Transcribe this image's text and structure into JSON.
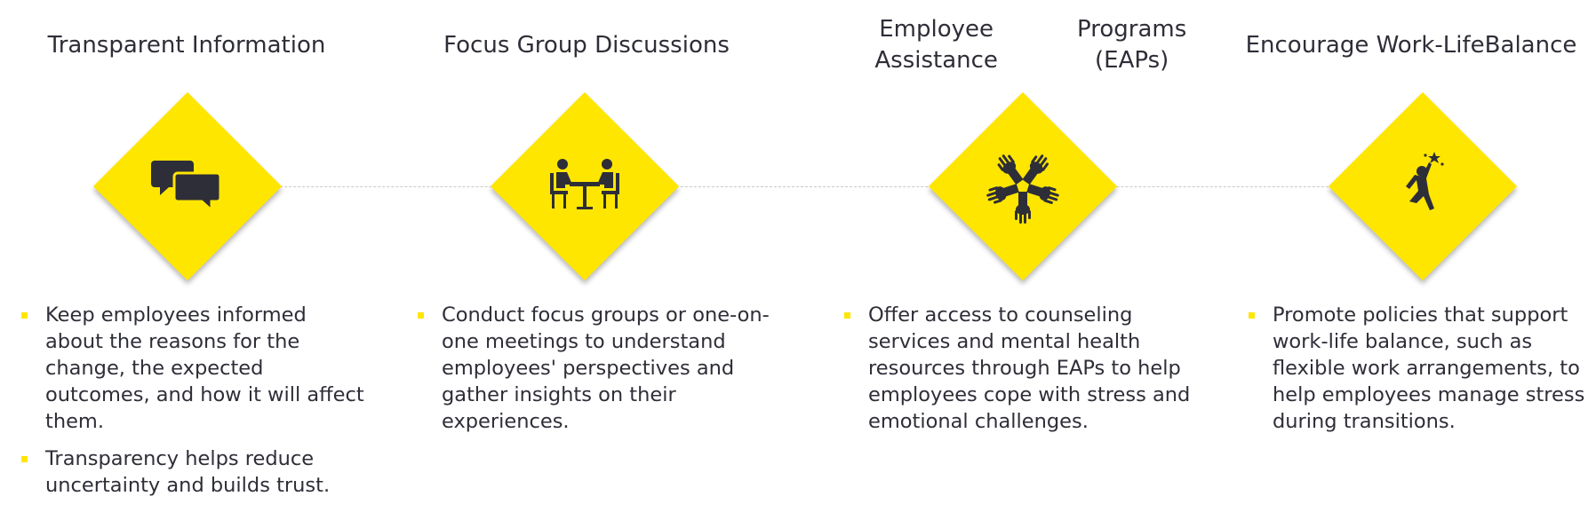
{
  "accent_color": "#ffe600",
  "text_color": "#2e2e38",
  "steps": [
    {
      "title_lines": [
        "Transparent Information"
      ],
      "icon": "chat-bubbles-icon",
      "bullets": [
        "Keep employees informed about the reasons for the change, the expected outcomes, and how it will affect them.",
        "Transparency helps reduce uncertainty and builds trust."
      ]
    },
    {
      "title_lines": [
        "Focus Group Discussions"
      ],
      "icon": "meeting-table-icon",
      "bullets": [
        "Conduct focus groups or one-on-one meetings to understand employees' perspectives and gather insights on their experiences."
      ]
    },
    {
      "title_lines": [
        "Employee Assistance",
        "Programs (EAPs)"
      ],
      "icon": "helping-hands-icon",
      "bullets": [
        "Offer access to counseling services and mental health resources through EAPs to help employees cope with stress and emotional challenges."
      ]
    },
    {
      "title_lines": [
        "Encourage Work-Life",
        "Balance"
      ],
      "icon": "reaching-star-icon",
      "bullets": [
        "Promote policies that support work-life balance, such as flexible work arrangements, to help employees manage stress during transitions."
      ]
    }
  ]
}
